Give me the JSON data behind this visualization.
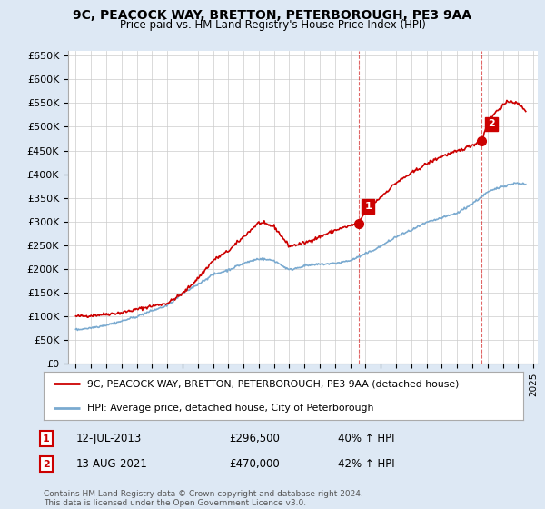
{
  "title": "9C, PEACOCK WAY, BRETTON, PETERBOROUGH, PE3 9AA",
  "subtitle": "Price paid vs. HM Land Registry's House Price Index (HPI)",
  "red_label": "9C, PEACOCK WAY, BRETTON, PETERBOROUGH, PE3 9AA (detached house)",
  "blue_label": "HPI: Average price, detached house, City of Peterborough",
  "footnote": "Contains HM Land Registry data © Crown copyright and database right 2024.\nThis data is licensed under the Open Government Licence v3.0.",
  "sale1_date": "12-JUL-2013",
  "sale1_price": "£296,500",
  "sale1_hpi": "40% ↑ HPI",
  "sale1_x": 2013.53,
  "sale1_y": 296500,
  "sale2_date": "13-AUG-2021",
  "sale2_price": "£470,000",
  "sale2_hpi": "42% ↑ HPI",
  "sale2_x": 2021.62,
  "sale2_y": 470000,
  "ylim": [
    0,
    660000
  ],
  "yticks": [
    0,
    50000,
    100000,
    150000,
    200000,
    250000,
    300000,
    350000,
    400000,
    450000,
    500000,
    550000,
    600000,
    650000
  ],
  "xlim_left": 1994.5,
  "xlim_right": 2025.3,
  "background_color": "#dde8f4",
  "plot_bg": "#ffffff",
  "red_color": "#cc0000",
  "blue_color": "#7aaad0",
  "grid_color": "#cccccc",
  "red_years": [
    1995,
    1996,
    1997,
    1998,
    1999,
    2000,
    2001,
    2002,
    2003,
    2004,
    2005,
    2006,
    2007,
    2008,
    2009,
    2010,
    2011,
    2012,
    2013.53,
    2014,
    2015,
    2016,
    2017,
    2018,
    2019,
    2020,
    2021.62,
    2022,
    2022.5,
    2023,
    2023.5,
    2024,
    2024.5
  ],
  "red_vals": [
    100000,
    102000,
    105000,
    108000,
    115000,
    122000,
    128000,
    148000,
    180000,
    218000,
    238000,
    268000,
    298000,
    290000,
    248000,
    255000,
    268000,
    282000,
    296500,
    322000,
    352000,
    382000,
    402000,
    422000,
    438000,
    448000,
    470000,
    510000,
    530000,
    545000,
    555000,
    548000,
    535000
  ],
  "blue_years": [
    1995,
    1996,
    1997,
    1998,
    1999,
    2000,
    2001,
    2002,
    2003,
    2004,
    2005,
    2006,
    2007,
    2008,
    2009,
    2010,
    2011,
    2012,
    2013,
    2014,
    2015,
    2016,
    2017,
    2018,
    2019,
    2020,
    2021,
    2022,
    2023,
    2024,
    2024.5
  ],
  "blue_vals": [
    72000,
    76000,
    82000,
    90000,
    100000,
    112000,
    123000,
    148000,
    168000,
    188000,
    198000,
    212000,
    222000,
    218000,
    198000,
    207000,
    210000,
    212000,
    218000,
    232000,
    248000,
    268000,
    282000,
    298000,
    308000,
    318000,
    338000,
    362000,
    375000,
    382000,
    378000
  ]
}
